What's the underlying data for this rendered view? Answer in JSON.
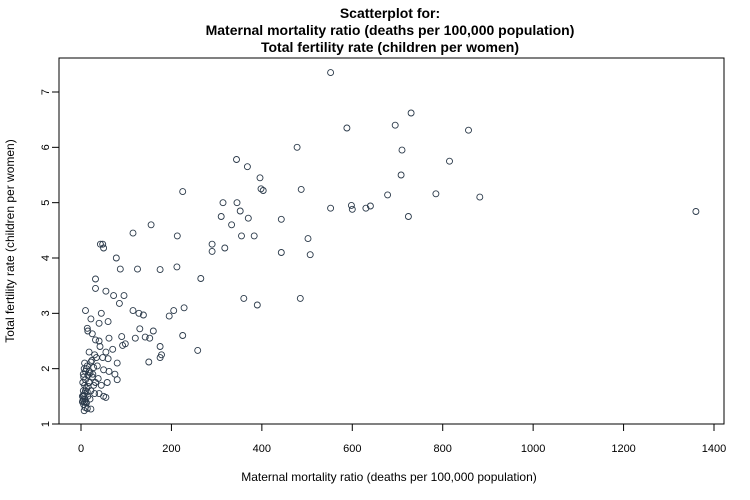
{
  "chart_data": {
    "type": "scatter",
    "title_lines": [
      "Scatterplot for:",
      "Maternal mortality ratio (deaths per 100,000 population)",
      "Total fertility rate (children per women)"
    ],
    "xlabel": "Maternal mortality ratio (deaths per 100,000 population)",
    "ylabel": "Total fertility rate (children per women)",
    "xlim": [
      -50,
      1420
    ],
    "ylim": [
      0.9,
      7.6
    ],
    "xticks": [
      0,
      200,
      400,
      600,
      800,
      1000,
      1200,
      1400
    ],
    "yticks": [
      1,
      2,
      3,
      4,
      5,
      6,
      7
    ],
    "grid": false,
    "marker": "open-circle",
    "marker_color": "#2b3a4a",
    "points": [
      [
        552,
        7.35
      ],
      [
        730,
        6.62
      ],
      [
        695,
        6.4
      ],
      [
        588,
        6.35
      ],
      [
        857,
        6.31
      ],
      [
        478,
        6.0
      ],
      [
        710,
        5.95
      ],
      [
        344,
        5.78
      ],
      [
        368,
        5.65
      ],
      [
        815,
        5.75
      ],
      [
        708,
        5.5
      ],
      [
        396,
        5.45
      ],
      [
        225,
        5.2
      ],
      [
        398,
        5.25
      ],
      [
        403,
        5.22
      ],
      [
        487,
        5.24
      ],
      [
        678,
        5.14
      ],
      [
        785,
        5.16
      ],
      [
        882,
        5.1
      ],
      [
        314,
        5.0
      ],
      [
        345,
        5.0
      ],
      [
        552,
        4.9
      ],
      [
        598,
        4.95
      ],
      [
        600,
        4.88
      ],
      [
        630,
        4.9
      ],
      [
        640,
        4.94
      ],
      [
        1360,
        4.84
      ],
      [
        352,
        4.85
      ],
      [
        310,
        4.75
      ],
      [
        370,
        4.72
      ],
      [
        333,
        4.6
      ],
      [
        724,
        4.75
      ],
      [
        443,
        4.7
      ],
      [
        155,
        4.6
      ],
      [
        115,
        4.45
      ],
      [
        213,
        4.4
      ],
      [
        355,
        4.4
      ],
      [
        383,
        4.4
      ],
      [
        502,
        4.35
      ],
      [
        290,
        4.25
      ],
      [
        43,
        4.25
      ],
      [
        48,
        4.25
      ],
      [
        50,
        4.18
      ],
      [
        290,
        4.12
      ],
      [
        318,
        4.18
      ],
      [
        443,
        4.1
      ],
      [
        507,
        4.06
      ],
      [
        78,
        4.0
      ],
      [
        87,
        3.8
      ],
      [
        125,
        3.8
      ],
      [
        175,
        3.79
      ],
      [
        212,
        3.84
      ],
      [
        265,
        3.63
      ],
      [
        32,
        3.62
      ],
      [
        32,
        3.45
      ],
      [
        55,
        3.4
      ],
      [
        72,
        3.32
      ],
      [
        95,
        3.32
      ],
      [
        85,
        3.18
      ],
      [
        360,
        3.27
      ],
      [
        485,
        3.27
      ],
      [
        390,
        3.15
      ],
      [
        228,
        3.1
      ],
      [
        205,
        3.05
      ],
      [
        115,
        3.05
      ],
      [
        128,
        3.0
      ],
      [
        138,
        2.97
      ],
      [
        195,
        2.95
      ],
      [
        10,
        3.05
      ],
      [
        45,
        3.0
      ],
      [
        22,
        2.9
      ],
      [
        40,
        2.82
      ],
      [
        60,
        2.85
      ],
      [
        14,
        2.73
      ],
      [
        15,
        2.68
      ],
      [
        25,
        2.63
      ],
      [
        90,
        2.58
      ],
      [
        120,
        2.55
      ],
      [
        130,
        2.72
      ],
      [
        142,
        2.57
      ],
      [
        152,
        2.55
      ],
      [
        160,
        2.68
      ],
      [
        225,
        2.6
      ],
      [
        258,
        2.33
      ],
      [
        175,
        2.4
      ],
      [
        178,
        2.25
      ],
      [
        150,
        2.12
      ],
      [
        175,
        2.2
      ],
      [
        32,
        2.52
      ],
      [
        40,
        2.5
      ],
      [
        62,
        2.55
      ],
      [
        42,
        2.4
      ],
      [
        55,
        2.3
      ],
      [
        70,
        2.35
      ],
      [
        30,
        2.25
      ],
      [
        18,
        2.3
      ],
      [
        48,
        2.2
      ],
      [
        60,
        2.18
      ],
      [
        80,
        2.1
      ],
      [
        92,
        2.42
      ],
      [
        98,
        2.45
      ],
      [
        8,
        2.1
      ],
      [
        14,
        2.05
      ],
      [
        22,
        2.12
      ],
      [
        28,
        2.02
      ],
      [
        36,
        2.05
      ],
      [
        50,
        1.98
      ],
      [
        62,
        1.95
      ],
      [
        75,
        1.9
      ],
      [
        10,
        1.95
      ],
      [
        5,
        1.9
      ],
      [
        15,
        1.88
      ],
      [
        25,
        1.85
      ],
      [
        38,
        1.82
      ],
      [
        45,
        1.7
      ],
      [
        58,
        1.75
      ],
      [
        80,
        1.8
      ],
      [
        18,
        1.75
      ],
      [
        28,
        1.7
      ],
      [
        8,
        1.7
      ],
      [
        12,
        1.65
      ],
      [
        22,
        1.6
      ],
      [
        30,
        1.55
      ],
      [
        5,
        1.6
      ],
      [
        6,
        1.5
      ],
      [
        15,
        1.5
      ],
      [
        40,
        1.55
      ],
      [
        50,
        1.5
      ],
      [
        55,
        1.48
      ],
      [
        4,
        1.42
      ],
      [
        8,
        1.4
      ],
      [
        12,
        1.38
      ],
      [
        20,
        1.45
      ],
      [
        6,
        1.35
      ],
      [
        9,
        1.3
      ],
      [
        14,
        1.28
      ],
      [
        22,
        1.27
      ],
      [
        7,
        1.24
      ],
      [
        5,
        1.45
      ],
      [
        8,
        1.55
      ],
      [
        10,
        1.8
      ],
      [
        12,
        2.0
      ],
      [
        7,
        2.0
      ],
      [
        18,
        1.95
      ],
      [
        26,
        1.9
      ],
      [
        32,
        1.75
      ],
      [
        4,
        1.75
      ],
      [
        6,
        1.85
      ],
      [
        10,
        1.6
      ],
      [
        16,
        1.68
      ],
      [
        20,
        1.92
      ],
      [
        24,
        2.15
      ],
      [
        34,
        2.2
      ],
      [
        3,
        1.5
      ],
      [
        5,
        1.52
      ],
      [
        9,
        1.45
      ],
      [
        11,
        1.4
      ],
      [
        14,
        1.58
      ],
      [
        3,
        1.4
      ]
    ]
  }
}
